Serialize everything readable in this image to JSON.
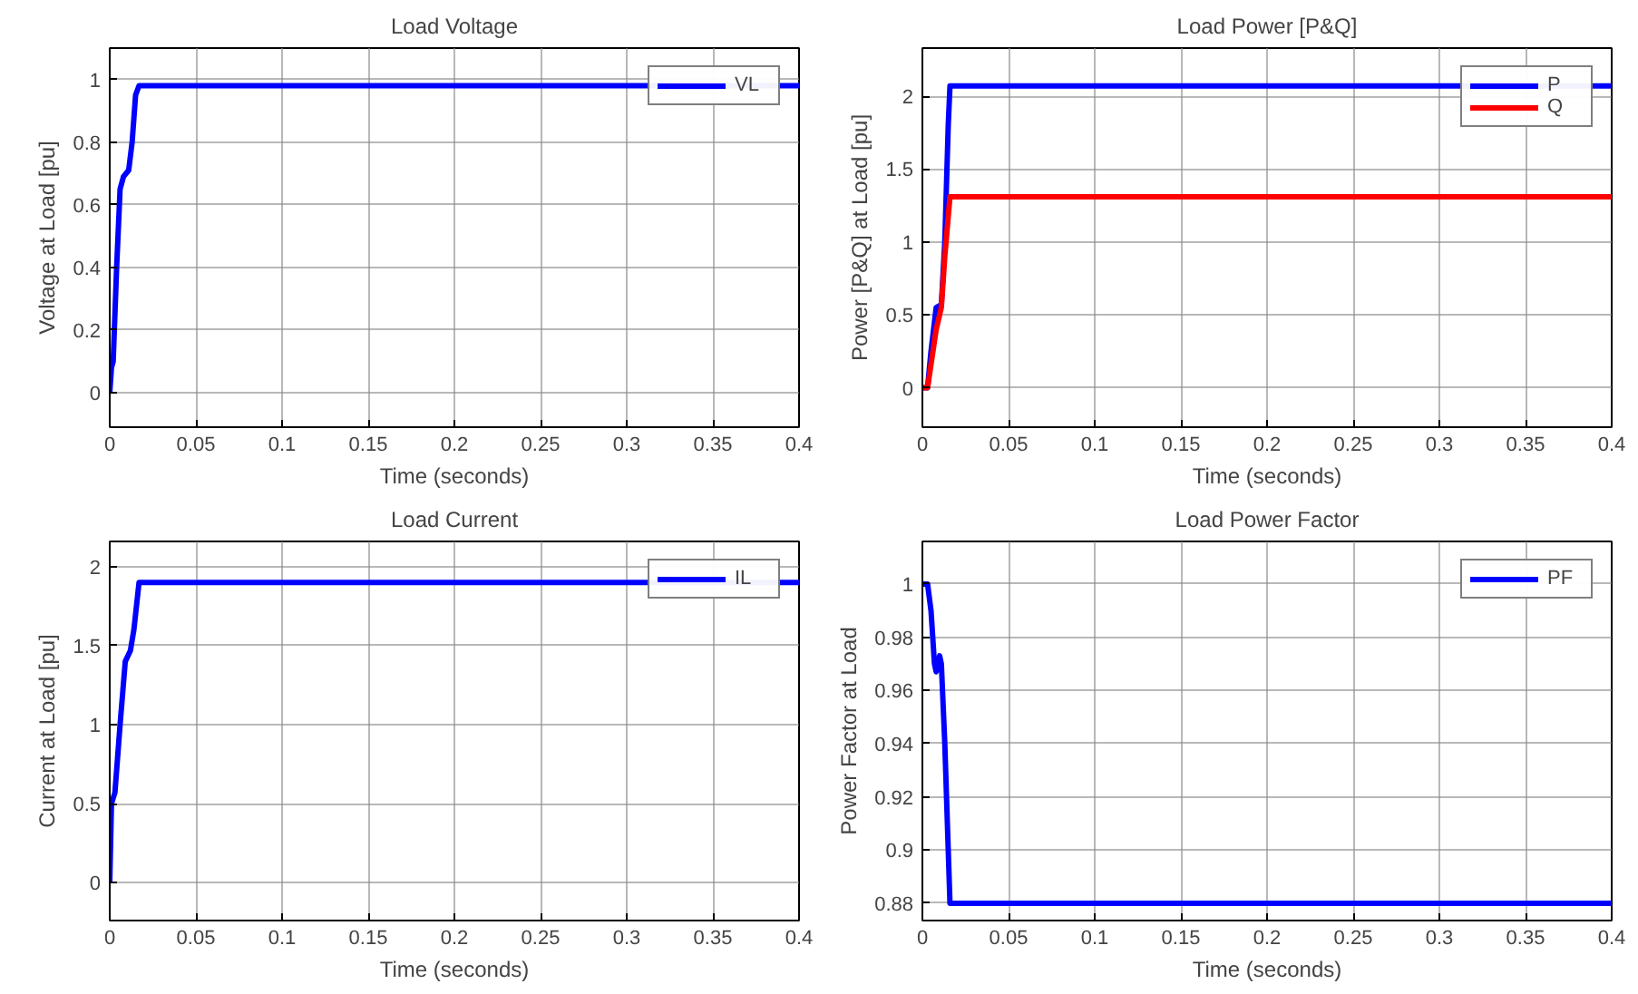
{
  "chart_data": [
    {
      "type": "line",
      "title": "Load Voltage",
      "xlabel": "Time (seconds)",
      "ylabel": "Voltage at Load [pu]",
      "xlim": [
        0,
        0.4
      ],
      "xticks": [
        0,
        0.05,
        0.1,
        0.15,
        0.2,
        0.25,
        0.3,
        0.35,
        0.4
      ],
      "ylim": [
        -0.11,
        1.1
      ],
      "yticks": [
        0,
        0.2,
        0.4,
        0.6,
        0.8,
        1
      ],
      "grid": true,
      "legend": "top right",
      "marker": "none",
      "line_style": "solid",
      "series": [
        {
          "name": "VL",
          "color": "#0000ff",
          "x": [
            0,
            0.001,
            0.002,
            0.004,
            0.006,
            0.008,
            0.011,
            0.013,
            0.015,
            0.017,
            0.4
          ],
          "values": [
            0,
            0.08,
            0.1,
            0.4,
            0.65,
            0.69,
            0.71,
            0.8,
            0.95,
            0.98,
            0.98
          ]
        }
      ]
    },
    {
      "type": "line",
      "title": "Load Power [P&Q]",
      "xlabel": "Time (seconds)",
      "ylabel": "Power [P&Q] at Load [pu]",
      "xlim": [
        0,
        0.4
      ],
      "xticks": [
        0,
        0.05,
        0.1,
        0.15,
        0.2,
        0.25,
        0.3,
        0.35,
        0.4
      ],
      "ylim": [
        -0.27,
        2.33
      ],
      "yticks": [
        0,
        0.5,
        1,
        1.5,
        2
      ],
      "grid": true,
      "legend": "top right",
      "marker": "none",
      "line_style": "solid",
      "series": [
        {
          "name": "P",
          "color": "#0000ff",
          "x": [
            0,
            0.003,
            0.005,
            0.008,
            0.011,
            0.013,
            0.015,
            0.016,
            0.4
          ],
          "values": [
            0,
            0,
            0.25,
            0.55,
            0.57,
            1.0,
            1.8,
            2.07,
            2.07
          ]
        },
        {
          "name": "Q",
          "color": "#ff0000",
          "x": [
            0,
            0.003,
            0.008,
            0.011,
            0.013,
            0.016,
            0.4
          ],
          "values": [
            0,
            0,
            0.4,
            0.55,
            0.9,
            1.31,
            1.31
          ]
        }
      ]
    },
    {
      "type": "line",
      "title": "Load Current",
      "xlabel": "Time (seconds)",
      "ylabel": "Current at Load [pu]",
      "xlim": [
        0,
        0.4
      ],
      "xticks": [
        0,
        0.05,
        0.1,
        0.15,
        0.2,
        0.25,
        0.3,
        0.35,
        0.4
      ],
      "ylim": [
        -0.24,
        2.16
      ],
      "yticks": [
        0,
        0.5,
        1,
        1.5,
        2
      ],
      "grid": true,
      "legend": "top right",
      "marker": "none",
      "line_style": "solid",
      "series": [
        {
          "name": "IL",
          "color": "#0000ff",
          "x": [
            0,
            0.001,
            0.003,
            0.006,
            0.009,
            0.012,
            0.014,
            0.017,
            0.4
          ],
          "values": [
            0,
            0.5,
            0.57,
            1.0,
            1.4,
            1.47,
            1.6,
            1.9,
            1.9
          ]
        }
      ]
    },
    {
      "type": "line",
      "title": "Load Power Factor",
      "xlabel": "Time (seconds)",
      "ylabel": "Power Factor at Load",
      "xlim": [
        0,
        0.4
      ],
      "xticks": [
        0,
        0.05,
        0.1,
        0.15,
        0.2,
        0.25,
        0.3,
        0.35,
        0.4
      ],
      "ylim": [
        0.8735,
        1.016
      ],
      "yticks": [
        0.88,
        0.9,
        0.92,
        0.94,
        0.96,
        0.98,
        1
      ],
      "grid": true,
      "legend": "top right",
      "marker": "none",
      "line_style": "solid",
      "series": [
        {
          "name": "PF",
          "color": "#0000ff",
          "x": [
            0,
            0.003,
            0.005,
            0.007,
            0.008,
            0.01,
            0.011,
            0.013,
            0.015,
            0.016,
            0.4
          ],
          "values": [
            1,
            1,
            0.99,
            0.97,
            0.967,
            0.973,
            0.97,
            0.94,
            0.9,
            0.88,
            0.88
          ]
        }
      ]
    }
  ]
}
